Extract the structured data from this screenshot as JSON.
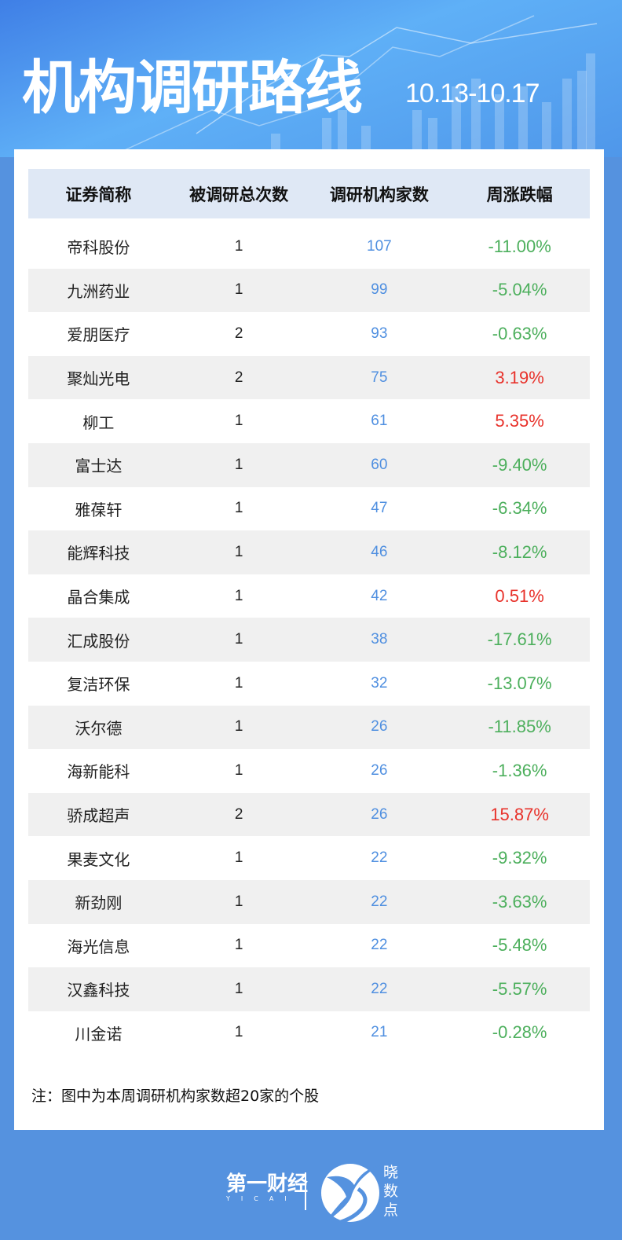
{
  "header": {
    "title": "机构调研路线",
    "date_range": "10.13-10.17"
  },
  "table": {
    "columns": [
      "证券简称",
      "被调研总次数",
      "调研机构家数",
      "周涨跌幅"
    ],
    "rows": [
      {
        "name": "帝科股份",
        "times": "1",
        "orgs": "107",
        "change": "-11.00%"
      },
      {
        "name": "九洲药业",
        "times": "1",
        "orgs": "99",
        "change": "-5.04%"
      },
      {
        "name": "爱朋医疗",
        "times": "2",
        "orgs": "93",
        "change": "-0.63%"
      },
      {
        "name": "聚灿光电",
        "times": "2",
        "orgs": "75",
        "change": "3.19%"
      },
      {
        "name": "柳工",
        "times": "1",
        "orgs": "61",
        "change": "5.35%"
      },
      {
        "name": "富士达",
        "times": "1",
        "orgs": "60",
        "change": "-9.40%"
      },
      {
        "name": "雅葆轩",
        "times": "1",
        "orgs": "47",
        "change": "-6.34%"
      },
      {
        "name": "能辉科技",
        "times": "1",
        "orgs": "46",
        "change": "-8.12%"
      },
      {
        "name": "晶合集成",
        "times": "1",
        "orgs": "42",
        "change": "0.51%"
      },
      {
        "name": "汇成股份",
        "times": "1",
        "orgs": "38",
        "change": "-17.61%"
      },
      {
        "name": "复洁环保",
        "times": "1",
        "orgs": "32",
        "change": "-13.07%"
      },
      {
        "name": "沃尔德",
        "times": "1",
        "orgs": "26",
        "change": "-11.85%"
      },
      {
        "name": "海新能科",
        "times": "1",
        "orgs": "26",
        "change": "-1.36%"
      },
      {
        "name": "骄成超声",
        "times": "2",
        "orgs": "26",
        "change": "15.87%"
      },
      {
        "name": "果麦文化",
        "times": "1",
        "orgs": "22",
        "change": "-9.32%"
      },
      {
        "name": "新劲刚",
        "times": "1",
        "orgs": "22",
        "change": "-3.63%"
      },
      {
        "name": "海光信息",
        "times": "1",
        "orgs": "22",
        "change": "-5.48%"
      },
      {
        "name": "汉鑫科技",
        "times": "1",
        "orgs": "22",
        "change": "-5.57%"
      },
      {
        "name": "川金诺",
        "times": "1",
        "orgs": "21",
        "change": "-0.28%"
      }
    ]
  },
  "note": "注：图中为本周调研机构家数超20家的个股",
  "footer": {
    "brand1": "第一财经",
    "brand1_sub": "YICAI",
    "brand2": "晓数点"
  },
  "colors": {
    "up": "#e8322b",
    "down": "#4caf5c",
    "org": "#4f8fe0",
    "background": "#5592df"
  }
}
